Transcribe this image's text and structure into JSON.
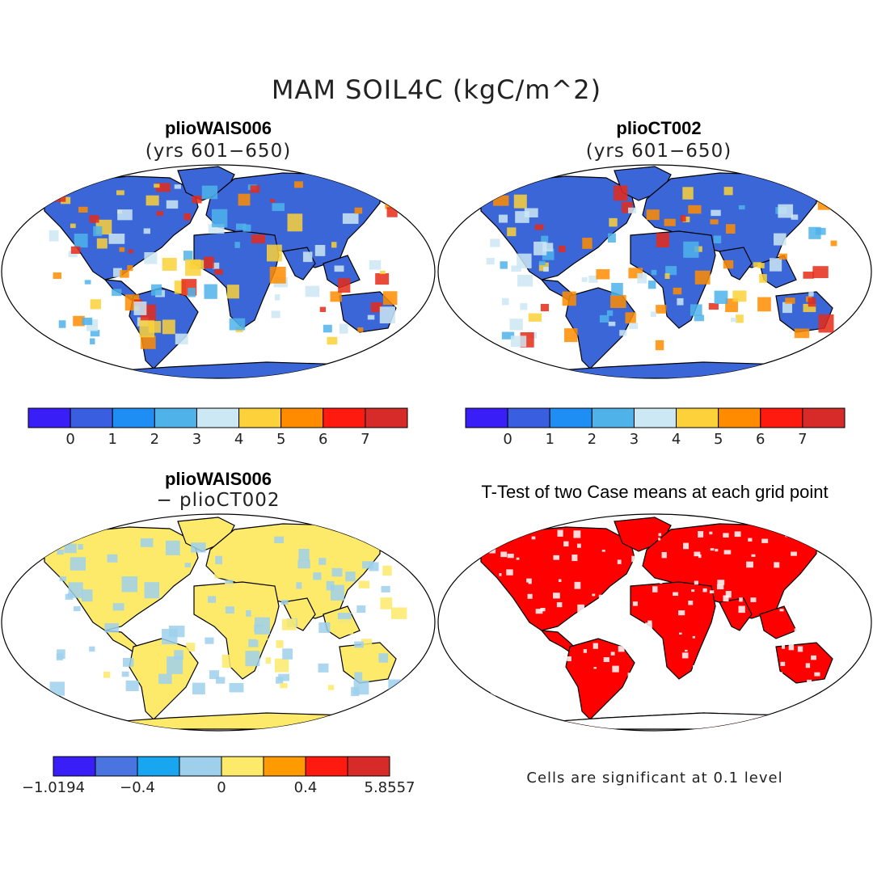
{
  "title": "MAM SOIL4C (kgC/m^2)",
  "panels": [
    {
      "id": "p1",
      "title": "plioWAIS006",
      "subtitle": "(yrs 601−650)",
      "fill": "#3a66d8",
      "accents": [
        "#e52a18",
        "#fcd13a",
        "#4fb3ea",
        "#cde8f5",
        "#ff8c00"
      ]
    },
    {
      "id": "p2",
      "title": "plioCT002",
      "subtitle": "(yrs 601−650)",
      "fill": "#3a66d8",
      "accents": [
        "#e52a18",
        "#fcd13a",
        "#4fb3ea",
        "#cde8f5",
        "#ff8c00"
      ]
    },
    {
      "id": "p3",
      "title": "plioWAIS006",
      "subtitle": "− plioCT002",
      "fill": "#fdea6b",
      "accents": [
        "#9ed0ec",
        "#9ed0ec",
        "#fdea6b"
      ]
    },
    {
      "id": "p4",
      "title": "T-Test of two Case means at each grid point",
      "subtitle": "",
      "fill": "#ff0000",
      "accents": [
        "#ffffff"
      ]
    }
  ],
  "colorbar_abs": {
    "colors": [
      "#3a1ef7",
      "#3a5ee0",
      "#1e8ef5",
      "#4fb3ea",
      "#cde8f5",
      "#fcd13a",
      "#ff8c00",
      "#ff1a0f",
      "#d62b28"
    ],
    "labels": [
      "0",
      "1",
      "2",
      "3",
      "4",
      "5",
      "6",
      "7"
    ]
  },
  "colorbar_diff": {
    "colors": [
      "#3a1ef7",
      "#4a74e0",
      "#18a6f0",
      "#9ed0ec",
      "#fdea6b",
      "#ff9a00",
      "#ff1a0f",
      "#d62b28"
    ],
    "labels": [
      "−1.0194",
      "−0.4",
      "0",
      "0.4",
      "5.8557"
    ]
  },
  "note": "Cells are significant at 0.1 level"
}
